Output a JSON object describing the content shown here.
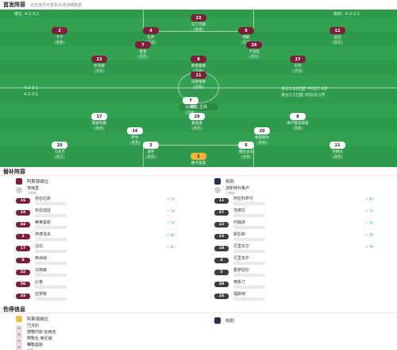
{
  "header": {
    "title": "首发阵容",
    "subtitle": "点击球员可查看本场详细数据"
  },
  "pitch": {
    "home_team_label": "维拉 ·4-2-3-1",
    "away_team_label": "热刺 · 4-2-3-1",
    "home_formation": "4-2-3-1",
    "away_formation": "4-2-3-1",
    "home_stats": "身价2.62亿欧 平均27.6岁",
    "away_stats": "身价3.1亿欧 平均26.5岁",
    "center_label": "维拉 主场"
  },
  "home_players": [
    {
      "num": "23",
      "name": "马丁内斯",
      "rating": "6.8"
    },
    {
      "num": "2",
      "name": "卡什",
      "rating": "6.9"
    },
    {
      "num": "4",
      "name": "孔萨",
      "rating": "7.0"
    },
    {
      "num": "5",
      "name": "明斯",
      "rating": "7.3"
    },
    {
      "num": "12",
      "name": "迪涅",
      "rating": "6.7"
    },
    {
      "num": "7",
      "name": "麦金",
      "rating": "7.5"
    },
    {
      "num": "26",
      "name": "卡马拉",
      "rating": "7.1"
    },
    {
      "num": "23",
      "name": "罗杰斯",
      "rating": "7.4"
    },
    {
      "num": "8",
      "name": "蒂莱曼斯",
      "rating": "7.2"
    },
    {
      "num": "27",
      "name": "贝利",
      "rating": "7.1"
    },
    {
      "num": "11",
      "name": "沃特金斯",
      "rating": "7.6"
    }
  ],
  "away_players": [
    {
      "num": "1",
      "name": "维卡里奥",
      "rating": "7.0"
    },
    {
      "num": "20",
      "name": "乌多吉",
      "rating": "6.7"
    },
    {
      "num": "21",
      "name": "范德文",
      "rating": "6.9"
    },
    {
      "num": "6",
      "name": "德拉古辛",
      "rating": "6.8"
    },
    {
      "num": "3",
      "name": "波罗",
      "rating": "6.6"
    },
    {
      "num": "20",
      "name": "本坦库尔",
      "rating": "6.4"
    },
    {
      "num": "16",
      "name": "萨尔",
      "rating": "6.5"
    },
    {
      "num": "7",
      "name": "孙兴慜",
      "rating": "7.2"
    },
    {
      "num": "29",
      "name": "麦迪逊",
      "rating": "6.7"
    },
    {
      "num": "8",
      "name": "库卢塞夫斯基",
      "rating": "6.6"
    },
    {
      "num": "17",
      "name": "理查利森",
      "rating": "6.9"
    }
  ],
  "lineup": {
    "section_title": "替补阵容",
    "home_team_name": "阿斯顿维拉",
    "away_team_name": "热刺",
    "home_coach": {
      "name": "埃梅里",
      "role": "主教练"
    },
    "away_coach": {
      "name": "波斯特科格卢",
      "role": "主教练"
    },
    "home_subs": [
      {
        "num": "16",
        "name": "张伯伦斯",
        "pos": "后卫",
        "note": "↑ 72'"
      },
      {
        "num": "10",
        "name": "布恩迪亚",
        "pos": "中场",
        "note": "↑ 78'"
      },
      {
        "num": "44",
        "name": "蒂莱曼斯",
        "pos": "中场",
        "note": "↑ 72'"
      },
      {
        "num": "3",
        "name": "林德洛夫",
        "pos": "后卫",
        "note": "↑ 82'"
      },
      {
        "num": "17",
        "name": "马伦",
        "pos": "前锋",
        "note": "↑ 82'"
      },
      {
        "num": "8",
        "name": "奥纳纳",
        "pos": "中场",
        "note": ""
      },
      {
        "num": "22",
        "name": "马特森",
        "pos": "后卫",
        "note": ""
      },
      {
        "num": "50",
        "name": "比格",
        "pos": "门将",
        "note": ""
      },
      {
        "num": "33",
        "name": "伯罗斯",
        "pos": "中场",
        "note": ""
      }
    ],
    "away_subs": [
      {
        "num": "11",
        "name": "阿拉科萨尔",
        "pos": "前锋",
        "note": "↑ 61'"
      },
      {
        "num": "37",
        "name": "范德文",
        "pos": "后卫",
        "note": "↑ 70'"
      },
      {
        "num": "22",
        "name": "约翰逊",
        "pos": "前锋",
        "note": "↑ 70'"
      },
      {
        "num": "23",
        "name": "斯彭斯",
        "pos": "后卫",
        "note": "↑ 79'"
      },
      {
        "num": "19",
        "name": "贝里瓦尔",
        "pos": "中场",
        "note": "↑ 79'"
      },
      {
        "num": "4",
        "name": "贝里瓦尔",
        "pos": "中场",
        "note": ""
      },
      {
        "num": "5",
        "name": "霍伊别尔",
        "pos": "中场",
        "note": ""
      },
      {
        "num": "30",
        "name": "奥斯汀",
        "pos": "门将",
        "note": ""
      },
      {
        "num": "24",
        "name": "福斯特",
        "pos": "门将",
        "note": ""
      }
    ]
  },
  "injuries": {
    "section_title": "伤停信息",
    "home_team_name": "阿斯顿维拉",
    "away_team_name": "热刺",
    "home_list": [
      {
        "name": "巴苏利",
        "status": "伤病"
      },
      {
        "name": "安德烈斯·加西亚",
        "status": "伤病"
      },
      {
        "name": "阿瓦杜·奥尼姆",
        "status": "伤病"
      },
      {
        "name": "蒂勒曼斯",
        "status": "伤病"
      }
    ]
  }
}
